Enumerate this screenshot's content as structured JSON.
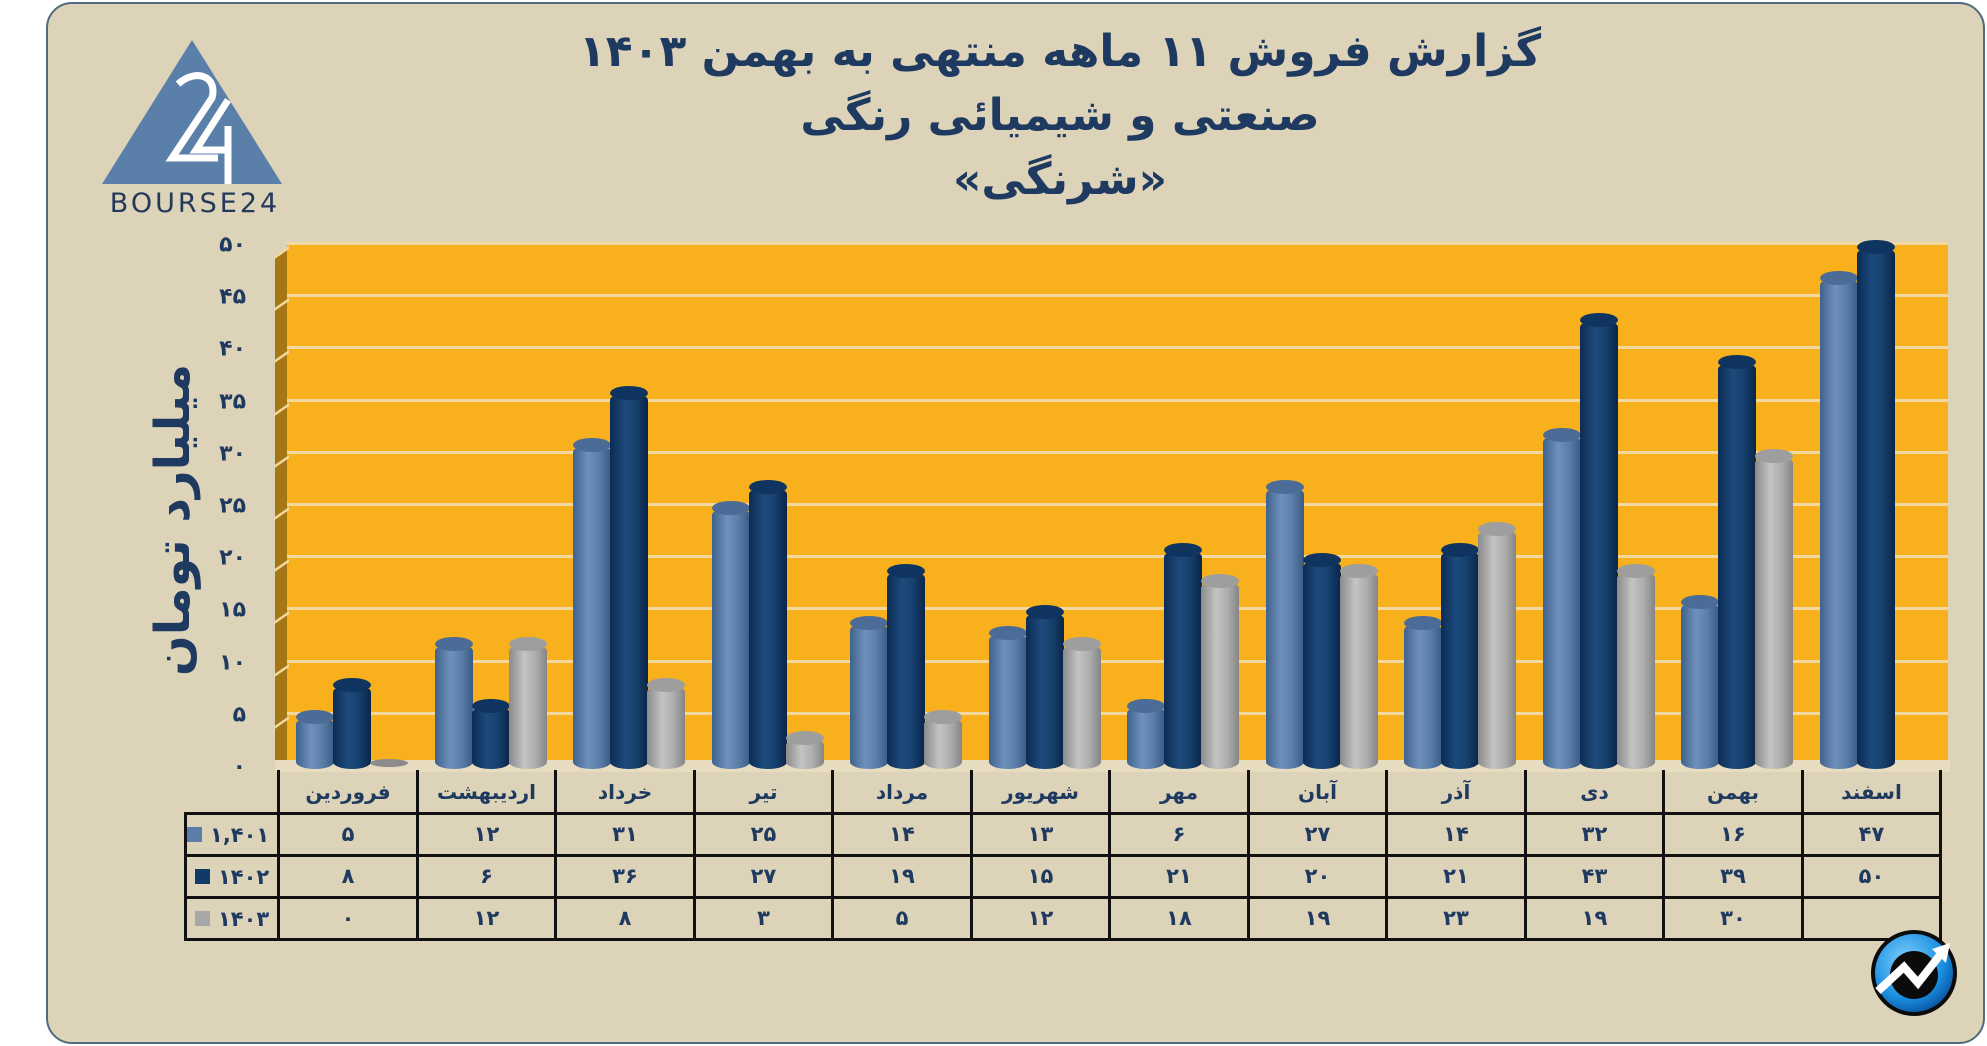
{
  "title": {
    "line1": "گزارش  فروش ۱۱ ماهه منتهی به بهمن ۱۴۰۳",
    "line2": "صنعتی و شیمیائی رنگی",
    "line3": "«شرنگی»"
  },
  "logo": {
    "glyph": "24",
    "text": "BOURSE24"
  },
  "y_axis": {
    "label": "میلیارد تومان",
    "ticks": [
      "۰",
      "۵",
      "۱۰",
      "۱۵",
      "۲۰",
      "۲۵",
      "۳۰",
      "۳۵",
      "۴۰",
      "۴۵",
      "۵۰"
    ]
  },
  "table": {
    "months": [
      "فروردین",
      "اردیبهشت",
      "خرداد",
      "تیر",
      "مرداد",
      "شهریور",
      "مهر",
      "آبان",
      "آذر",
      "دی",
      "بهمن",
      "اسفند"
    ],
    "rows": [
      {
        "label": "۱,۴۰۱",
        "color": "#5a7ea8",
        "values": [
          "۵",
          "۱۲",
          "۳۱",
          "۲۵",
          "۱۴",
          "۱۳",
          "۶",
          "۲۷",
          "۱۴",
          "۳۲",
          "۱۶",
          "۴۷"
        ]
      },
      {
        "label": "۱۴۰۲",
        "color": "#123a68",
        "values": [
          "۸",
          "۶",
          "۳۶",
          "۲۷",
          "۱۹",
          "۱۵",
          "۲۱",
          "۲۰",
          "۲۱",
          "۴۳",
          "۳۹",
          "۵۰"
        ]
      },
      {
        "label": "۱۴۰۳",
        "color": "#a8a8a8",
        "values": [
          "۰",
          "۱۲",
          "۸",
          "۳",
          "۵",
          "۱۲",
          "۱۸",
          "۱۹",
          "۲۳",
          "۱۹",
          "۳۰",
          ""
        ]
      }
    ]
  },
  "colors": {
    "panel_bg": "#ddd3b8",
    "plot_bg": "#f8b11c",
    "series_1401": "#5a7ea8",
    "series_1402": "#123a68",
    "series_1403": "#a8a8a8",
    "text": "#1f3a60"
  },
  "chart_data": {
    "type": "bar",
    "title": "گزارش فروش ۱۱ ماهه منتهی به بهمن ۱۴۰۳ — صنعتی و شیمیائی رنگی «شرنگی»",
    "xlabel": "",
    "ylabel": "میلیارد تومان",
    "ylim": [
      0,
      50
    ],
    "yticks": [
      0,
      5,
      10,
      15,
      20,
      25,
      30,
      35,
      40,
      45,
      50
    ],
    "grid": true,
    "legend_position": "table-left",
    "categories": [
      "فروردین",
      "اردیبهشت",
      "خرداد",
      "تیر",
      "مرداد",
      "شهریور",
      "مهر",
      "آبان",
      "آذر",
      "دی",
      "بهمن",
      "اسفند"
    ],
    "series": [
      {
        "name": "1401",
        "color": "#5a7ea8",
        "values": [
          5,
          12,
          31,
          25,
          14,
          13,
          6,
          27,
          14,
          32,
          16,
          47
        ]
      },
      {
        "name": "1402",
        "color": "#123a68",
        "values": [
          8,
          6,
          36,
          27,
          19,
          15,
          21,
          20,
          21,
          43,
          39,
          50
        ]
      },
      {
        "name": "1403",
        "color": "#a8a8a8",
        "values": [
          0,
          12,
          8,
          3,
          5,
          12,
          18,
          19,
          23,
          19,
          30,
          null
        ]
      }
    ]
  }
}
